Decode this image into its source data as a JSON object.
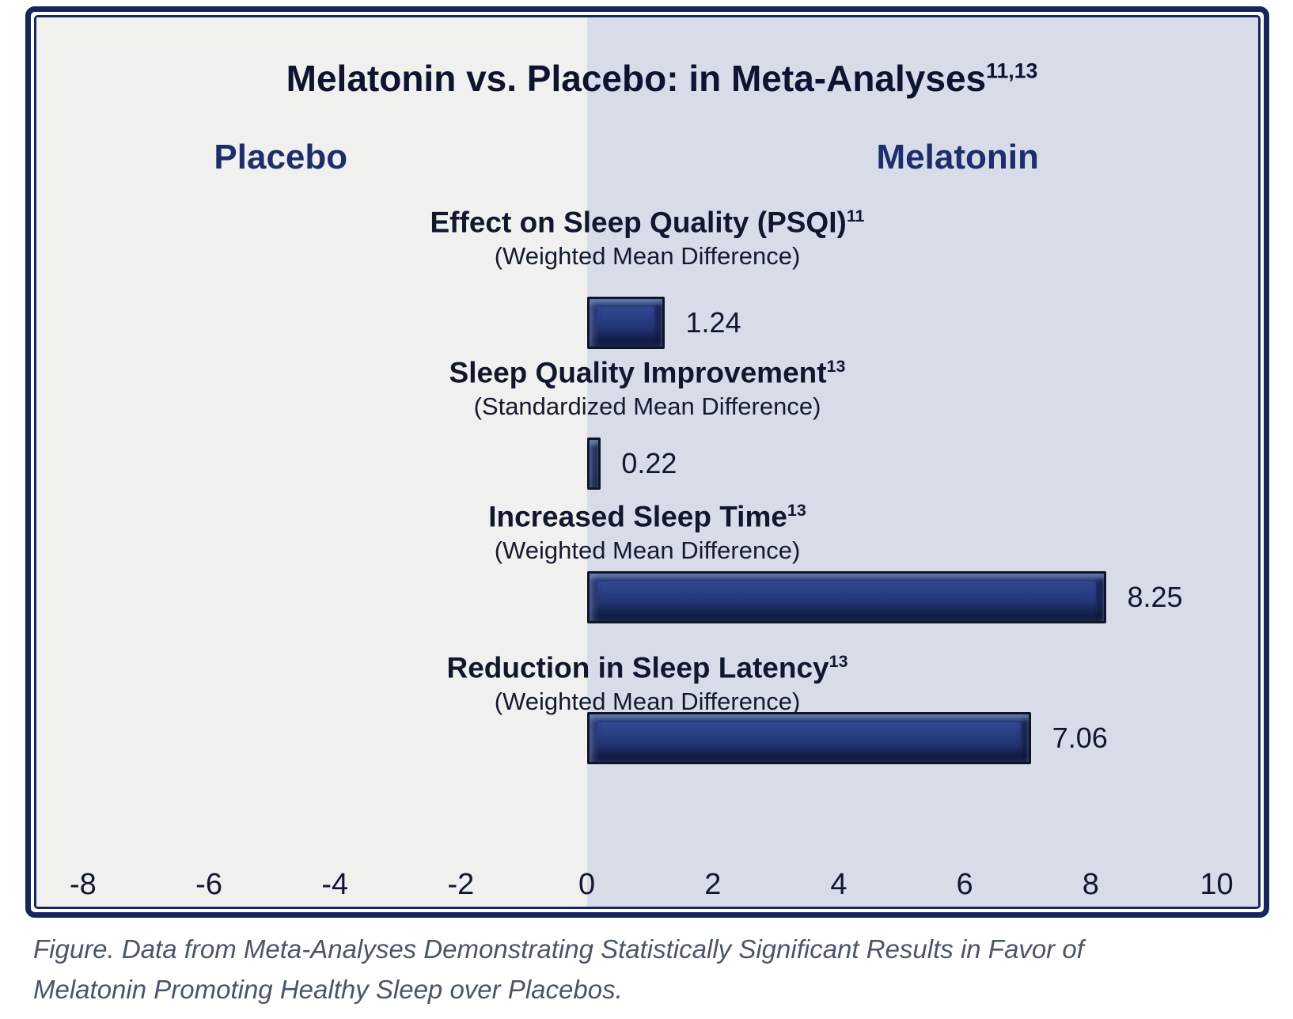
{
  "chart": {
    "title": "Melatonin vs. Placebo: in Meta-Analyses",
    "title_superscript": "11,13",
    "left_label": "Placebo",
    "right_label": "Melatonin"
  },
  "caption": {
    "text": "Figure. Data from Meta-Analyses Demonstrating Statistically Significant Results in Favor of Melatonin Promoting Healthy Sleep over Placebos."
  },
  "chart_data": {
    "type": "bar",
    "orientation": "horizontal",
    "title": "Melatonin vs. Placebo: in Meta-Analyses",
    "title_superscript": "11,13",
    "side_labels": {
      "negative_side": "Placebo",
      "positive_side": "Melatonin"
    },
    "categories": [
      {
        "label": "Effect on Sleep Quality (PSQI)",
        "superscript": "11",
        "measure": "(Weighted Mean Difference)",
        "value": 1.24,
        "value_label": "1.24"
      },
      {
        "label": "Sleep Quality Improvement",
        "superscript": "13",
        "measure": "(Standardized Mean Difference)",
        "value": 0.22,
        "value_label": "0.22"
      },
      {
        "label": "Increased Sleep Time",
        "superscript": "13",
        "measure": "(Weighted Mean Difference)",
        "value": 8.25,
        "value_label": "8.25"
      },
      {
        "label": "Reduction in Sleep Latency",
        "superscript": "13",
        "measure": "(Weighted Mean Difference)",
        "value": 7.06,
        "value_label": "7.06"
      }
    ],
    "x_ticks": [
      -8,
      -6,
      -4,
      -2,
      0,
      2,
      4,
      6,
      8,
      10
    ],
    "xlim": [
      -8.74,
      10.66
    ],
    "grid": false,
    "legend": "none",
    "colors": {
      "frame_border": "#16265c",
      "placebo_background": "#f0f0ee",
      "melatonin_background": "#d8dce9",
      "bar_fill": "#24397b",
      "bar_outline": "#0d1529",
      "side_label_text": "#1c2e6b",
      "heading_text": "#10172f",
      "caption_text": "#4a5568"
    }
  }
}
